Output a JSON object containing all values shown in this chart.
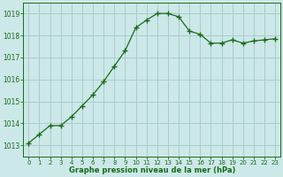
{
  "x": [
    0,
    1,
    2,
    3,
    4,
    5,
    6,
    7,
    8,
    9,
    10,
    11,
    12,
    13,
    14,
    15,
    16,
    17,
    18,
    19,
    20,
    21,
    22,
    23
  ],
  "y": [
    1013.1,
    1013.5,
    1013.9,
    1013.9,
    1014.3,
    1014.8,
    1015.3,
    1015.9,
    1016.6,
    1017.3,
    1018.35,
    1018.7,
    1019.0,
    1019.0,
    1018.85,
    1018.2,
    1018.05,
    1017.65,
    1017.65,
    1017.8,
    1017.65,
    1017.75,
    1017.8,
    1017.85
  ],
  "line_color": "#1a6b1a",
  "marker": "+",
  "marker_size": 4,
  "marker_linewidth": 1.0,
  "bg_color": "#cce8e8",
  "grid_color": "#aacccc",
  "xlabel": "Graphe pression niveau de la mer (hPa)",
  "xlabel_color": "#1a6b1a",
  "tick_color": "#1a6b1a",
  "axis_color": "#1a6b1a",
  "ylim": [
    1012.5,
    1019.5
  ],
  "yticks": [
    1013,
    1014,
    1015,
    1016,
    1017,
    1018,
    1019
  ],
  "xlim": [
    -0.5,
    23.5
  ],
  "xticks": [
    0,
    1,
    2,
    3,
    4,
    5,
    6,
    7,
    8,
    9,
    10,
    11,
    12,
    13,
    14,
    15,
    16,
    17,
    18,
    19,
    20,
    21,
    22,
    23
  ],
  "figsize": [
    3.2,
    2.0
  ],
  "dpi": 100
}
